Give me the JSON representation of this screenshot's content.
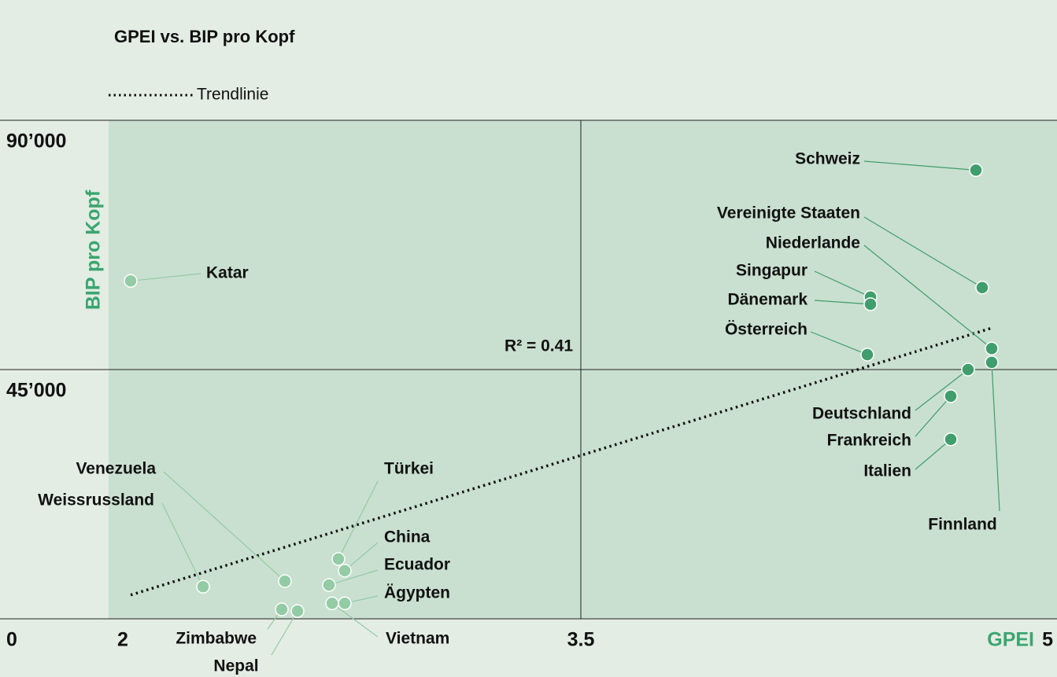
{
  "chart_data": {
    "type": "scatter",
    "title": "GPEI vs. BIP pro Kopf",
    "x_label": "GPEI",
    "y_label": "BIP pro Kopf",
    "axis_label_color": "#3aa56e",
    "legend_label": "Trendlinie",
    "annotation": "R² = 0.41",
    "xlim": [
      2,
      5
    ],
    "xticks": [
      2,
      3.5,
      5
    ],
    "ylim": [
      0,
      90000
    ],
    "yticks": [
      0,
      {
        "value": 45000,
        "label": "45’000"
      },
      {
        "value": 90000,
        "label": "90’000"
      }
    ],
    "plot_color": "#c9dfcf",
    "points": [
      {
        "label": "Katar",
        "x": 2.07,
        "y": 61000,
        "color": "#93cca4"
      },
      {
        "label": "Schweiz",
        "x": 4.755,
        "y": 81000,
        "color": "#3f9e6b"
      },
      {
        "label": "Vereinigte Staaten",
        "x": 4.775,
        "y": 59800,
        "color": "#3f9e6b"
      },
      {
        "label": "Niederlande",
        "x": 4.805,
        "y": 48800,
        "color": "#3f9e6b"
      },
      {
        "label": "Singapur",
        "x": 4.42,
        "y": 58100,
        "color": "#3f9e6b"
      },
      {
        "label": "Dänemark",
        "x": 4.42,
        "y": 56800,
        "color": "#3f9e6b"
      },
      {
        "label": "Österreich",
        "x": 4.41,
        "y": 47700,
        "color": "#3f9e6b"
      },
      {
        "label": "Deutschland",
        "x": 4.73,
        "y": 45000,
        "color": "#3f9e6b"
      },
      {
        "label": "Frankreich",
        "x": 4.675,
        "y": 40200,
        "color": "#3f9e6b"
      },
      {
        "label": "Italien",
        "x": 4.675,
        "y": 32400,
        "color": "#3f9e6b"
      },
      {
        "label": "Finnland",
        "x": 4.805,
        "y": 46300,
        "color": "#3f9e6b"
      },
      {
        "label": "Venezuela",
        "x": 2.56,
        "y": 6800,
        "color": "#93cca4"
      },
      {
        "label": "Weissrussland",
        "x": 2.3,
        "y": 5800,
        "color": "#93cca4"
      },
      {
        "label": "Türkei",
        "x": 2.73,
        "y": 10800,
        "color": "#93cca4"
      },
      {
        "label": "China",
        "x": 2.75,
        "y": 8700,
        "color": "#93cca4"
      },
      {
        "label": "Ecuador",
        "x": 2.7,
        "y": 6100,
        "color": "#93cca4"
      },
      {
        "label": "Ägypten",
        "x": 2.75,
        "y": 2800,
        "color": "#93cca4"
      },
      {
        "label": "Vietnam",
        "x": 2.71,
        "y": 2800,
        "color": "#93cca4"
      },
      {
        "label": "Zimbabwe",
        "x": 2.55,
        "y": 1700,
        "color": "#93cca4"
      },
      {
        "label": "Nepal",
        "x": 2.6,
        "y": 1400,
        "color": "#93cca4"
      }
    ],
    "trendline": {
      "x": [
        2.07,
        4.805
      ],
      "y": [
        4300,
        52500
      ]
    }
  }
}
